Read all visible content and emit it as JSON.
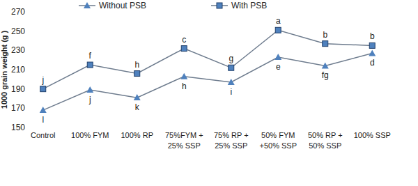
{
  "chart_data": {
    "type": "line",
    "y_label": "1000 grain weight (g )",
    "categories": [
      "Control",
      "100% FYM",
      "100% RP",
      "75%FYM + 25% SSP",
      "75% RP + 25% SSP",
      "50% FYM +50% SSP",
      "50% RP + 50% SSP",
      "100% SSP"
    ],
    "series": [
      {
        "name": "Without PSB",
        "color": "#4f81bd",
        "marker": "triangle",
        "values": [
          168,
          189,
          181,
          203,
          197,
          223,
          214,
          227
        ],
        "letters": [
          "l",
          "j",
          "k",
          "h",
          "i",
          "e",
          "fg",
          "d"
        ]
      },
      {
        "name": "With PSB",
        "color": "#4f81bd",
        "marker": "square",
        "values": [
          190,
          215,
          206,
          232,
          212,
          251,
          237,
          235
        ],
        "letters": [
          "j",
          "f",
          "h",
          "c",
          "g",
          "a",
          "b",
          "b"
        ]
      }
    ],
    "ylim": [
      150,
      270
    ],
    "yticks": [
      150,
      170,
      190,
      210,
      230,
      250,
      270
    ],
    "grid": false,
    "legend": "top"
  }
}
